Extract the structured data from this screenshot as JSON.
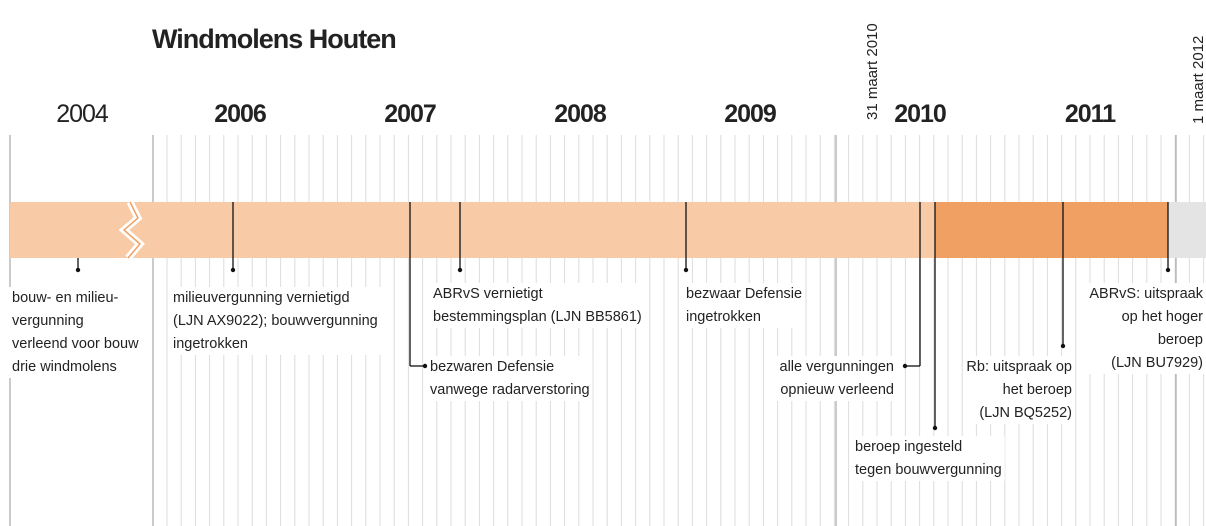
{
  "title": "Windmolens Houten",
  "years": [
    "2004",
    "2006",
    "2007",
    "2008",
    "2009",
    "2010",
    "2011"
  ],
  "dates": [
    "31 maart 2010",
    "1 maart 2012"
  ],
  "events": [
    {
      "lines": [
        "bouw- en milieu-",
        "vergunning",
        "verleend voor bouw",
        "drie windmolens"
      ]
    },
    {
      "lines": [
        "milieuvergunning vernietigd",
        "(LJN AX9022); bouwvergunning",
        "ingetrokken"
      ]
    },
    {
      "lines": [
        "bezwaren Defensie",
        "vanwege radarverstoring"
      ]
    },
    {
      "lines": [
        "ABRvS vernietigt",
        "bestemmingsplan (LJN BB5861)"
      ]
    },
    {
      "lines": [
        "bezwaar Defensie",
        "ingetrokken"
      ]
    },
    {
      "lines": [
        "alle vergunningen",
        "opnieuw verleend"
      ]
    },
    {
      "lines": [
        "beroep ingesteld",
        "tegen bouwvergunning"
      ]
    },
    {
      "lines": [
        "Rb: uitspraak op",
        "het beroep",
        "(LJN BQ5252)"
      ]
    },
    {
      "lines": [
        "ABRvS: uitspraak",
        "op het hoger",
        "beroep",
        "(LJN BU7929)"
      ]
    }
  ]
}
